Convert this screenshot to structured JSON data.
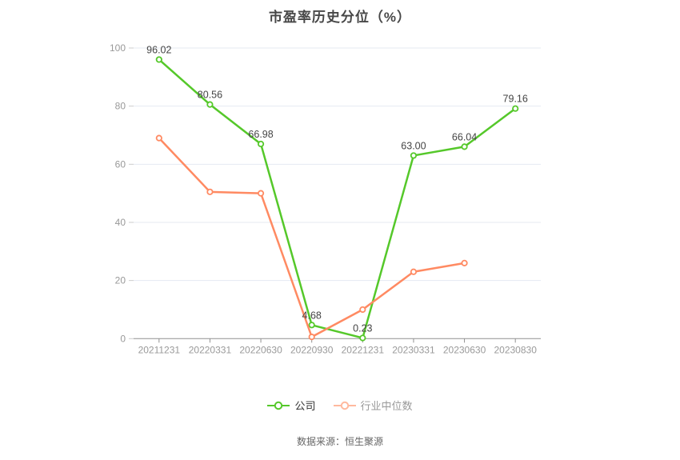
{
  "title": "市盈率历史分位（%）",
  "source": "数据来源：恒生聚源",
  "colors": {
    "background": "#ffffff",
    "grid": "#e4eaf2",
    "axis": "#919191",
    "y_tick": "#cccccc",
    "tick_label": "#999999",
    "point_label": "#444444",
    "title": "#474747",
    "source": "#666666"
  },
  "chart_data": {
    "type": "line",
    "title": "市盈率历史分位（%）",
    "xlabel": "",
    "ylabel": "",
    "ylim": [
      0,
      100
    ],
    "yticks": [
      0,
      20,
      40,
      60,
      80,
      100
    ],
    "grid": true,
    "legend_position": "bottom",
    "categories": [
      "20211231",
      "20220331",
      "20220630",
      "20220930",
      "20221231",
      "20230331",
      "20230630",
      "20230830"
    ],
    "series": [
      {
        "name": "公司",
        "color": "#55c82a",
        "legend_color": "#55c82a",
        "legend_text_color": "#333333",
        "show_point_labels": true,
        "values": [
          96.02,
          80.56,
          66.98,
          4.68,
          0.23,
          63.0,
          66.04,
          79.16
        ]
      },
      {
        "name": "行业中位数",
        "color": "#ff8a62",
        "legend_color": "#ffb99e",
        "legend_text_color": "#999999",
        "show_point_labels": false,
        "values": [
          69,
          50.5,
          50,
          0.6,
          10,
          23,
          26,
          null
        ]
      }
    ]
  }
}
